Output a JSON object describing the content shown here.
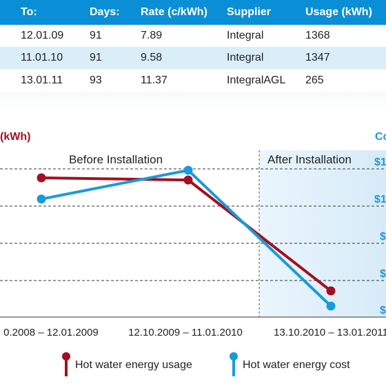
{
  "table": {
    "headers": [
      "To:",
      "Days:",
      "Rate (c/kWh)",
      "Supplier",
      "Usage (kWh)"
    ],
    "rows": [
      [
        "12.01.09",
        "91",
        "7.89",
        "Integral",
        "1368"
      ],
      [
        "11.01.10",
        "91",
        "9.58",
        "Integral",
        "1347"
      ],
      [
        "13.01.11",
        "93",
        "11.37",
        "IntegralAGL",
        "265"
      ]
    ]
  },
  "colors": {
    "header_bg": "#0a8fd6",
    "usage": "#a50f1e",
    "cost": "#1a9ad9",
    "after_region": "#e3f1fa"
  },
  "chart_data": {
    "type": "line",
    "left_axis_label": "(kWh)",
    "right_axis_label": "Co",
    "right_tick_labels": [
      "$1",
      "$1",
      "$",
      "$",
      "$"
    ],
    "region_labels": {
      "before": "Before Installation",
      "after": "After Installation"
    },
    "categories": [
      "0.2008 – 12.01.2009",
      "12.10.2009 – 11.01.2010",
      "13.10.2010 – 13.01.2011"
    ],
    "series": [
      {
        "name": "Hot water energy usage",
        "color": "#a50f1e",
        "values": [
          1368,
          1347,
          265
        ]
      },
      {
        "name": "Hot water energy cost",
        "color": "#1a9ad9",
        "values": [
          108,
          129,
          30
        ]
      }
    ],
    "legend": {
      "position": "bottom",
      "items": [
        "Hot water energy usage",
        "Hot water energy cost"
      ]
    },
    "grid": true
  }
}
